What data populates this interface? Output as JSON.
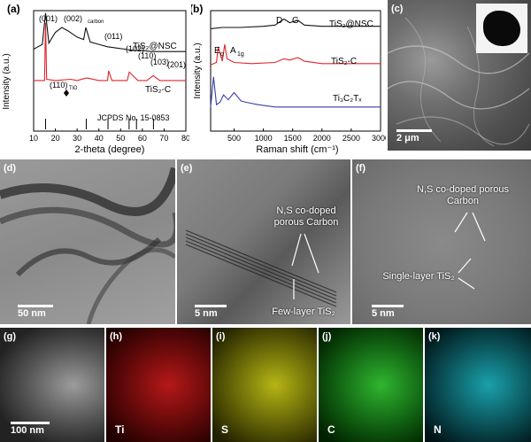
{
  "panels": {
    "a": {
      "label": "(a)",
      "ylabel": "Intensity (a.u.)",
      "xlabel": "2-theta (degree)",
      "xticks": [
        "10",
        "20",
        "30",
        "40",
        "50",
        "60",
        "70",
        "80"
      ],
      "series_labels": [
        "TiS₂@NSC",
        "TiS₂-C",
        "JCPDS No. 15-0853"
      ],
      "peak_labels": [
        "(001)",
        "(002)",
        "carbon",
        "(011)",
        "(102)",
        "(110)",
        "(103)",
        "(201)",
        "(110)",
        "TiO"
      ],
      "colors": {
        "black": "#111111",
        "red": "#e0242b"
      }
    },
    "b": {
      "label": "(b)",
      "ylabel": "Intensity (a.u.)",
      "xlabel": "Raman shift (cm⁻¹)",
      "xticks": [
        "500",
        "1000",
        "1500",
        "2000",
        "2500",
        "3000"
      ],
      "series_labels": [
        "TiS₂@NSC",
        "TiS₂-C",
        "Ti₃C₂Tₓ"
      ],
      "peak_labels": [
        "D",
        "G",
        "E",
        "g",
        "A",
        "1g"
      ],
      "colors": {
        "black": "#111111",
        "red": "#e0242b",
        "blue": "#3a3fa5"
      }
    },
    "c": {
      "label": "(c)",
      "scale": "2 μm"
    },
    "d": {
      "label": "(d)",
      "scale": "50 nm"
    },
    "e": {
      "label": "(e)",
      "scale": "5 nm",
      "annot1": "N,S co-doped porous Carbon",
      "annot2": "Few-layer TiS₂"
    },
    "f": {
      "label": "(f)",
      "scale": "5 nm",
      "annot1": "N,S co-doped porous Carbon",
      "annot2": "Single-layer TiS₂"
    },
    "g": {
      "label": "(g)",
      "scale": "100 nm"
    },
    "h": {
      "label": "(h)",
      "element": "Ti",
      "color": "#d41a1a"
    },
    "i": {
      "label": "(i)",
      "element": "S",
      "color": "#c8c81a"
    },
    "j": {
      "label": "(j)",
      "element": "C",
      "color": "#27b52e"
    },
    "k": {
      "label": "(k)",
      "element": "N",
      "color": "#1fb5c0"
    }
  },
  "chart_data": [
    {
      "type": "line",
      "xlabel": "2-theta (degree)",
      "ylabel": "Intensity (a.u.)",
      "xlim": [
        10,
        80
      ],
      "series": [
        {
          "name": "TiS₂@NSC",
          "x": [
            10,
            12,
            14,
            15.5,
            17,
            20,
            23,
            26,
            30,
            33,
            34,
            36,
            40,
            44,
            48,
            52,
            56,
            60,
            64,
            68,
            72,
            76,
            80
          ],
          "values": [
            0.68,
            0.7,
            0.72,
            0.98,
            0.73,
            0.82,
            0.86,
            0.83,
            0.78,
            0.76,
            0.86,
            0.74,
            0.72,
            0.7,
            0.69,
            0.68,
            0.67,
            0.67,
            0.66,
            0.66,
            0.66,
            0.66,
            0.66
          ]
        },
        {
          "name": "TiS₂-C",
          "x": [
            10,
            13,
            15,
            15.5,
            16,
            20,
            27,
            30,
            34,
            35,
            40,
            44,
            44.5,
            46,
            50,
            53,
            54,
            58,
            62,
            65,
            68,
            72,
            76,
            80
          ],
          "values": [
            0.42,
            0.42,
            0.42,
            0.9,
            0.43,
            0.42,
            0.43,
            0.42,
            0.44,
            0.44,
            0.42,
            0.42,
            0.5,
            0.42,
            0.42,
            0.42,
            0.49,
            0.42,
            0.42,
            0.46,
            0.42,
            0.42,
            0.42,
            0.42
          ]
        }
      ],
      "reference_lines_x": [
        15.5,
        34.2,
        44.2,
        53.9,
        57.3,
        65.1
      ]
    },
    {
      "type": "line",
      "xlabel": "Raman shift (cm⁻¹)",
      "ylabel": "Intensity (a.u.)",
      "xlim": [
        100,
        3000
      ],
      "series": [
        {
          "name": "TiS₂@NSC",
          "x": [
            100,
            300,
            600,
            1000,
            1200,
            1350,
            1450,
            1590,
            1700,
            2000,
            2500,
            3000
          ],
          "values": [
            0.85,
            0.86,
            0.86,
            0.87,
            0.88,
            0.93,
            0.9,
            0.92,
            0.88,
            0.87,
            0.87,
            0.87
          ]
        },
        {
          "name": "TiS₂-C",
          "x": [
            100,
            200,
            230,
            300,
            340,
            380,
            500,
            800,
            1200,
            1350,
            1450,
            1590,
            1700,
            2000,
            2500,
            3000
          ],
          "values": [
            0.55,
            0.57,
            0.7,
            0.58,
            0.72,
            0.6,
            0.57,
            0.56,
            0.57,
            0.6,
            0.59,
            0.61,
            0.58,
            0.56,
            0.56,
            0.56
          ]
        },
        {
          "name": "Ti₃C₂Tₓ",
          "x": [
            100,
            150,
            200,
            260,
            320,
            400,
            500,
            620,
            700,
            900,
            1200,
            1500,
            2000,
            2500,
            3000
          ],
          "values": [
            0.2,
            0.45,
            0.22,
            0.24,
            0.3,
            0.26,
            0.32,
            0.25,
            0.24,
            0.22,
            0.2,
            0.2,
            0.2,
            0.2,
            0.2
          ]
        }
      ]
    }
  ]
}
